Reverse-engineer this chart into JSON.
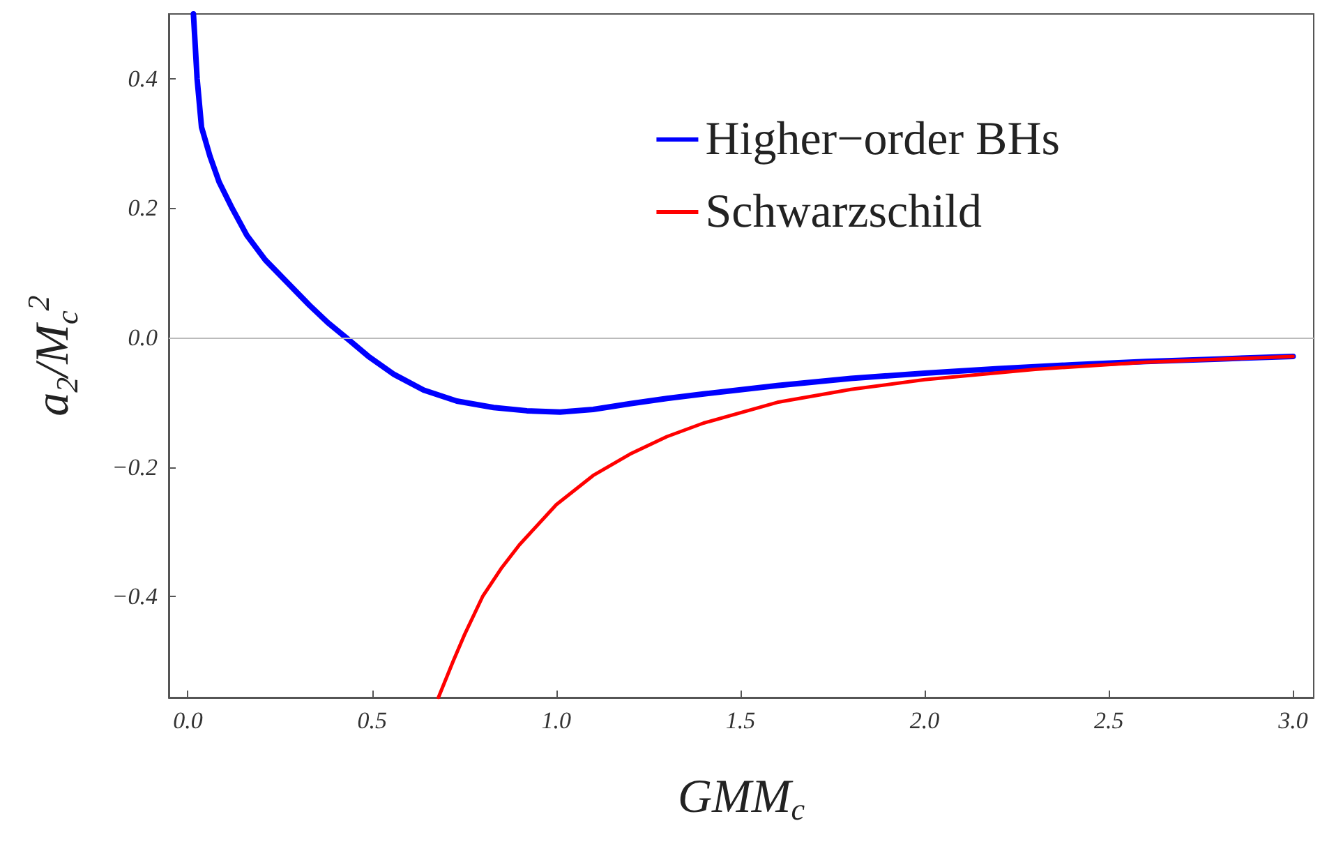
{
  "chart_data": {
    "type": "line",
    "xlabel": "GMM$_{c}$",
    "ylabel": "a$_{2}$/M$_{c}$$^{2}$",
    "xlim": [
      -0.052,
      3.056
    ],
    "ylim": [
      -0.556,
      0.5
    ],
    "xticks": [
      {
        "value": 0,
        "label": "0.0"
      },
      {
        "value": 0.5,
        "label": "0.5"
      },
      {
        "value": 1,
        "label": "1.0"
      },
      {
        "value": 1.5,
        "label": "1.5"
      },
      {
        "value": 2,
        "label": "2.0"
      },
      {
        "value": 2.5,
        "label": "2.5"
      },
      {
        "value": 3,
        "label": "3.0"
      }
    ],
    "yticks": [
      {
        "value": -0.4,
        "label": "−0.4"
      },
      {
        "value": -0.2,
        "label": "−0.2"
      },
      {
        "value": 0,
        "label": "0.0"
      },
      {
        "value": 0.2,
        "label": "0.2"
      },
      {
        "value": 0.4,
        "label": "0.4"
      }
    ],
    "grid": false,
    "legend": "top right",
    "marker": "none",
    "line_style": "solid",
    "ref_lines": [
      {
        "axis": "y",
        "value": 0,
        "color": "#bbbbbb"
      }
    ],
    "series": [
      {
        "name": "Higher−order BHs",
        "color": "#0000ff",
        "x": [
          0.015,
          0.025,
          0.037,
          0.06,
          0.085,
          0.12,
          0.16,
          0.21,
          0.27,
          0.33,
          0.38,
          0.44,
          0.49,
          0.56,
          0.64,
          0.73,
          0.83,
          0.92,
          1.01,
          1.1,
          1.2,
          1.3,
          1.4,
          1.6,
          1.8,
          2.0,
          2.2,
          2.4,
          2.6,
          2.8,
          3.0
        ],
        "values": [
          0.5,
          0.4,
          0.325,
          0.28,
          0.24,
          0.2,
          0.158,
          0.12,
          0.085,
          0.05,
          0.023,
          -0.005,
          -0.029,
          -0.057,
          -0.081,
          -0.098,
          -0.108,
          -0.113,
          -0.115,
          -0.111,
          -0.102,
          -0.094,
          -0.087,
          -0.074,
          -0.063,
          -0.055,
          -0.048,
          -0.042,
          -0.037,
          -0.033,
          -0.029
        ]
      },
      {
        "name": "Schwarzschild",
        "color": "#ff0000",
        "x": [
          0.68,
          0.72,
          0.75,
          0.8,
          0.85,
          0.9,
          1.0,
          1.1,
          1.2,
          1.3,
          1.4,
          1.6,
          1.8,
          2.0,
          2.3,
          2.6,
          3.0
        ],
        "values": [
          -0.556,
          -0.5,
          -0.46,
          -0.4,
          -0.357,
          -0.32,
          -0.258,
          -0.213,
          -0.18,
          -0.153,
          -0.132,
          -0.1,
          -0.08,
          -0.065,
          -0.049,
          -0.038,
          -0.029
        ]
      }
    ]
  }
}
